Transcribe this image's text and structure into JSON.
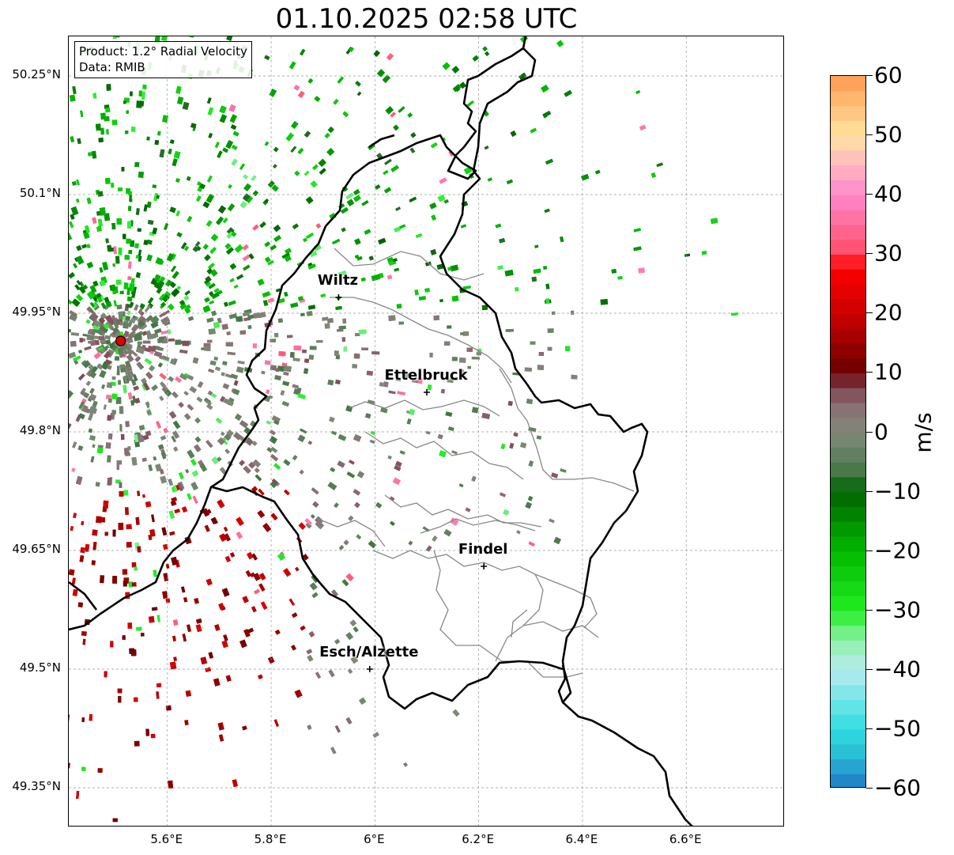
{
  "title": "01.10.2025 02:58 UTC",
  "info": {
    "product": "Product: 1.2° Radial Velocity",
    "source": "Data: RMIB"
  },
  "axes": {
    "lat_ticks": [
      "50.25°N",
      "50.1°N",
      "49.95°N",
      "49.8°N",
      "49.65°N",
      "49.5°N",
      "49.35°N"
    ],
    "lon_ticks": [
      "5.6°E",
      "5.8°E",
      "6°E",
      "6.2°E",
      "6.4°E",
      "6.6°E"
    ],
    "lat_values": [
      50.25,
      50.1,
      49.95,
      49.8,
      49.65,
      49.5,
      49.35
    ],
    "lon_values": [
      5.6,
      5.8,
      6.0,
      6.2,
      6.4,
      6.6
    ],
    "lon_range": [
      5.41,
      6.79
    ],
    "lat_range": [
      49.3,
      50.3
    ]
  },
  "colorbar": {
    "unit": "m/s",
    "min": -60,
    "max": 60,
    "tick_labels": [
      "60",
      "50",
      "40",
      "30",
      "20",
      "10",
      "0",
      "−10",
      "−20",
      "−30",
      "−40",
      "−50",
      "−60"
    ],
    "tick_values": [
      60,
      50,
      40,
      30,
      20,
      10,
      0,
      -10,
      -20,
      -30,
      -40,
      -50,
      -60
    ],
    "stops": [
      {
        "v": -60,
        "color": "#1f77c4"
      },
      {
        "v": -55,
        "color": "#28b6d2"
      },
      {
        "v": -50,
        "color": "#2fdde0"
      },
      {
        "v": -40,
        "color": "#b8ecf0"
      },
      {
        "v": -35,
        "color": "#8ef0a8"
      },
      {
        "v": -30,
        "color": "#22ee22"
      },
      {
        "v": -20,
        "color": "#00b800"
      },
      {
        "v": -10,
        "color": "#006400"
      },
      {
        "v": -6,
        "color": "#4e7a4e"
      },
      {
        "v": 0,
        "color": "#7f8a7a"
      },
      {
        "v": 5,
        "color": "#8a6a72"
      },
      {
        "v": 8,
        "color": "#7a3a44"
      },
      {
        "v": 10,
        "color": "#6a0000"
      },
      {
        "v": 20,
        "color": "#cc0000"
      },
      {
        "v": 28,
        "color": "#ff0000"
      },
      {
        "v": 30,
        "color": "#ff4d66"
      },
      {
        "v": 40,
        "color": "#ff88cc"
      },
      {
        "v": 45,
        "color": "#ffb6c1"
      },
      {
        "v": 50,
        "color": "#ffe4a0"
      },
      {
        "v": 60,
        "color": "#ff9a50"
      }
    ]
  },
  "radar_site": {
    "lon": 5.51,
    "lat": 49.915,
    "color": "#e00000"
  },
  "cities": [
    {
      "name": "Wiltz",
      "lon": 5.93,
      "lat": 49.97
    },
    {
      "name": "Ettelbruck",
      "lon": 6.1,
      "lat": 49.85
    },
    {
      "name": "Findel",
      "lon": 6.21,
      "lat": 49.63
    },
    {
      "name": "Esch/Alzette",
      "lon": 5.99,
      "lat": 49.5
    }
  ]
}
